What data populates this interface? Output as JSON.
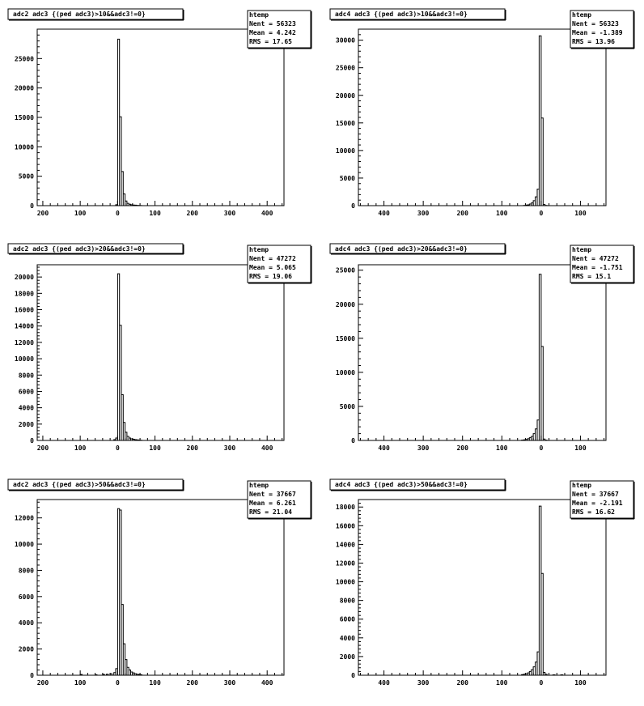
{
  "chart_data": [
    {
      "type": "bar",
      "title": "adc2  adc3 {(ped  adc3)>10&&adc3!=0}",
      "stats": {
        "header": "htemp",
        "entries": "Nent = 56323",
        "mean": "Mean  =  4.242",
        "rms": "RMS  =  17.65"
      },
      "xlim": [
        -215,
        445
      ],
      "ylim": [
        0,
        30000
      ],
      "xticks": [
        -200,
        -100,
        0,
        100,
        200,
        300,
        400
      ],
      "xtick_labels": [
        "200",
        "100",
        "0",
        "100",
        "200",
        "300",
        "400"
      ],
      "yticks": [
        0,
        5000,
        10000,
        15000,
        20000,
        25000
      ],
      "ytick_labels": [
        "0",
        "5000",
        "10000",
        "15000",
        "20000",
        "25000"
      ],
      "bins": [
        [
          -5,
          150
        ],
        [
          0,
          28300
        ],
        [
          5,
          15100
        ],
        [
          10,
          5800
        ],
        [
          15,
          2000
        ],
        [
          20,
          800
        ],
        [
          25,
          400
        ],
        [
          30,
          250
        ],
        [
          35,
          150
        ],
        [
          40,
          100
        ],
        [
          45,
          80
        ],
        [
          50,
          50
        ],
        [
          55,
          30
        ],
        [
          60,
          20
        ]
      ]
    },
    {
      "type": "bar",
      "title": "adc4  adc3 {(ped  adc3)>10&&adc3!=0}",
      "stats": {
        "header": "htemp",
        "entries": "Nent = 56323",
        "mean": "Mean  =  -1.389",
        "rms": "RMS  =  13.96"
      },
      "xlim": [
        -465,
        165
      ],
      "ylim": [
        0,
        32000
      ],
      "xticks": [
        -400,
        -300,
        -200,
        -100,
        0,
        100
      ],
      "xtick_labels": [
        "400",
        "300",
        "200",
        "100",
        "0",
        "100"
      ],
      "yticks": [
        0,
        5000,
        10000,
        15000,
        20000,
        25000,
        30000
      ],
      "ytick_labels": [
        "0",
        "5000",
        "10000",
        "15000",
        "20000",
        "25000",
        "30000"
      ],
      "bins": [
        [
          -45,
          50
        ],
        [
          -40,
          100
        ],
        [
          -35,
          150
        ],
        [
          -30,
          300
        ],
        [
          -25,
          500
        ],
        [
          -20,
          900
        ],
        [
          -15,
          1600
        ],
        [
          -10,
          3000
        ],
        [
          -5,
          30800
        ],
        [
          0,
          15900
        ],
        [
          5,
          200
        ],
        [
          10,
          50
        ]
      ]
    },
    {
      "type": "bar",
      "title": "adc2  adc3 {(ped  adc3)>20&&adc3!=0}",
      "stats": {
        "header": "htemp",
        "entries": "Nent = 47272",
        "mean": "Mean  =  5.065",
        "rms": "RMS  =  19.06"
      },
      "xlim": [
        -215,
        445
      ],
      "ylim": [
        0,
        21500
      ],
      "xticks": [
        -200,
        -100,
        0,
        100,
        200,
        300,
        400
      ],
      "xtick_labels": [
        "200",
        "100",
        "0",
        "100",
        "200",
        "300",
        "400"
      ],
      "yticks": [
        0,
        2000,
        4000,
        6000,
        8000,
        10000,
        12000,
        14000,
        16000,
        18000,
        20000
      ],
      "ytick_labels": [
        "0",
        "2000",
        "4000",
        "6000",
        "8000",
        "10000",
        "12000",
        "14000",
        "16000",
        "18000",
        "20000"
      ],
      "bins": [
        [
          -10,
          100
        ],
        [
          -5,
          300
        ],
        [
          0,
          20400
        ],
        [
          5,
          14100
        ],
        [
          10,
          5600
        ],
        [
          15,
          2200
        ],
        [
          20,
          1000
        ],
        [
          25,
          500
        ],
        [
          30,
          300
        ],
        [
          35,
          200
        ],
        [
          40,
          150
        ],
        [
          45,
          100
        ],
        [
          50,
          80
        ],
        [
          55,
          50
        ],
        [
          60,
          30
        ]
      ]
    },
    {
      "type": "bar",
      "title": "adc4  adc3 {(ped  adc3)>20&&adc3!=0}",
      "stats": {
        "header": "htemp",
        "entries": "Nent = 47272",
        "mean": "Mean  =  -1.751",
        "rms": "RMS  =  15.1"
      },
      "xlim": [
        -465,
        165
      ],
      "ylim": [
        0,
        25800
      ],
      "xticks": [
        -400,
        -300,
        -200,
        -100,
        0,
        100
      ],
      "xtick_labels": [
        "400",
        "300",
        "200",
        "100",
        "0",
        "100"
      ],
      "yticks": [
        0,
        5000,
        10000,
        15000,
        20000,
        25000
      ],
      "ytick_labels": [
        "0",
        "5000",
        "10000",
        "15000",
        "20000",
        "25000"
      ],
      "bins": [
        [
          -50,
          50
        ],
        [
          -45,
          100
        ],
        [
          -40,
          150
        ],
        [
          -35,
          250
        ],
        [
          -30,
          400
        ],
        [
          -25,
          600
        ],
        [
          -20,
          1000
        ],
        [
          -15,
          1700
        ],
        [
          -10,
          3000
        ],
        [
          -5,
          24400
        ],
        [
          0,
          13800
        ],
        [
          5,
          200
        ],
        [
          10,
          50
        ]
      ]
    },
    {
      "type": "bar",
      "title": "adc2  adc3 {(ped  adc3)>50&&adc3!=0}",
      "stats": {
        "header": "htemp",
        "entries": "Nent = 37667",
        "mean": "Mean  =  6.261",
        "rms": "RMS  =  21.04"
      },
      "xlim": [
        -215,
        445
      ],
      "ylim": [
        0,
        13400
      ],
      "xticks": [
        -200,
        -100,
        0,
        100,
        200,
        300,
        400
      ],
      "xtick_labels": [
        "200",
        "100",
        "0",
        "100",
        "200",
        "300",
        "400"
      ],
      "yticks": [
        0,
        2000,
        4000,
        6000,
        8000,
        10000,
        12000
      ],
      "ytick_labels": [
        "0",
        "2000",
        "4000",
        "6000",
        "8000",
        "10000",
        "12000"
      ],
      "bins": [
        [
          -100,
          60
        ],
        [
          -60,
          40
        ],
        [
          -40,
          60
        ],
        [
          -30,
          80
        ],
        [
          -20,
          120
        ],
        [
          -10,
          200
        ],
        [
          -5,
          500
        ],
        [
          0,
          12700
        ],
        [
          5,
          12600
        ],
        [
          10,
          5400
        ],
        [
          15,
          2400
        ],
        [
          20,
          1200
        ],
        [
          25,
          600
        ],
        [
          30,
          400
        ],
        [
          35,
          250
        ],
        [
          40,
          180
        ],
        [
          45,
          120
        ],
        [
          50,
          80
        ],
        [
          55,
          60
        ],
        [
          60,
          40
        ]
      ]
    },
    {
      "type": "bar",
      "title": "adc4  adc3 {(ped  adc3)>50&&adc3!=0}",
      "stats": {
        "header": "htemp",
        "entries": "Nent = 37667",
        "mean": "Mean  =  -2.191",
        "rms": "RMS  =  16.62"
      },
      "xlim": [
        -465,
        165
      ],
      "ylim": [
        0,
        18800
      ],
      "xticks": [
        -400,
        -300,
        -200,
        -100,
        0,
        100
      ],
      "xtick_labels": [
        "400",
        "300",
        "200",
        "100",
        "0",
        "100"
      ],
      "yticks": [
        0,
        2000,
        4000,
        6000,
        8000,
        10000,
        12000,
        14000,
        16000,
        18000
      ],
      "ytick_labels": [
        "0",
        "2000",
        "4000",
        "6000",
        "8000",
        "10000",
        "12000",
        "14000",
        "16000",
        "18000"
      ],
      "bins": [
        [
          -50,
          60
        ],
        [
          -45,
          100
        ],
        [
          -40,
          150
        ],
        [
          -35,
          250
        ],
        [
          -30,
          400
        ],
        [
          -25,
          600
        ],
        [
          -20,
          900
        ],
        [
          -15,
          1400
        ],
        [
          -10,
          2500
        ],
        [
          -5,
          18100
        ],
        [
          0,
          10900
        ],
        [
          5,
          300
        ],
        [
          10,
          100
        ],
        [
          30,
          40
        ],
        [
          50,
          40
        ]
      ]
    }
  ]
}
